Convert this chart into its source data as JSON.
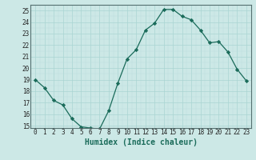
{
  "x": [
    0,
    1,
    2,
    3,
    4,
    5,
    6,
    7,
    8,
    9,
    10,
    11,
    12,
    13,
    14,
    15,
    16,
    17,
    18,
    19,
    20,
    21,
    22,
    23
  ],
  "y": [
    19.0,
    18.3,
    17.2,
    16.8,
    15.6,
    14.9,
    14.8,
    14.7,
    16.3,
    18.7,
    20.8,
    21.6,
    23.3,
    23.9,
    25.1,
    25.1,
    24.5,
    24.2,
    23.3,
    22.2,
    22.3,
    21.4,
    19.9,
    18.9
  ],
  "line_color": "#1a6b5a",
  "marker": "D",
  "marker_size": 2.2,
  "bg_color": "#cce8e6",
  "grid_major_color": "#aad4d2",
  "grid_minor_color": "#bddedd",
  "xlabel": "Humidex (Indice chaleur)",
  "xlim": [
    -0.5,
    23.5
  ],
  "ylim": [
    14.8,
    25.5
  ],
  "yticks": [
    15,
    16,
    17,
    18,
    19,
    20,
    21,
    22,
    23,
    24,
    25
  ],
  "xticks": [
    0,
    1,
    2,
    3,
    4,
    5,
    6,
    7,
    8,
    9,
    10,
    11,
    12,
    13,
    14,
    15,
    16,
    17,
    18,
    19,
    20,
    21,
    22,
    23
  ],
  "tick_fontsize": 5.5,
  "xlabel_fontsize": 7.0,
  "spine_color": "#557070"
}
